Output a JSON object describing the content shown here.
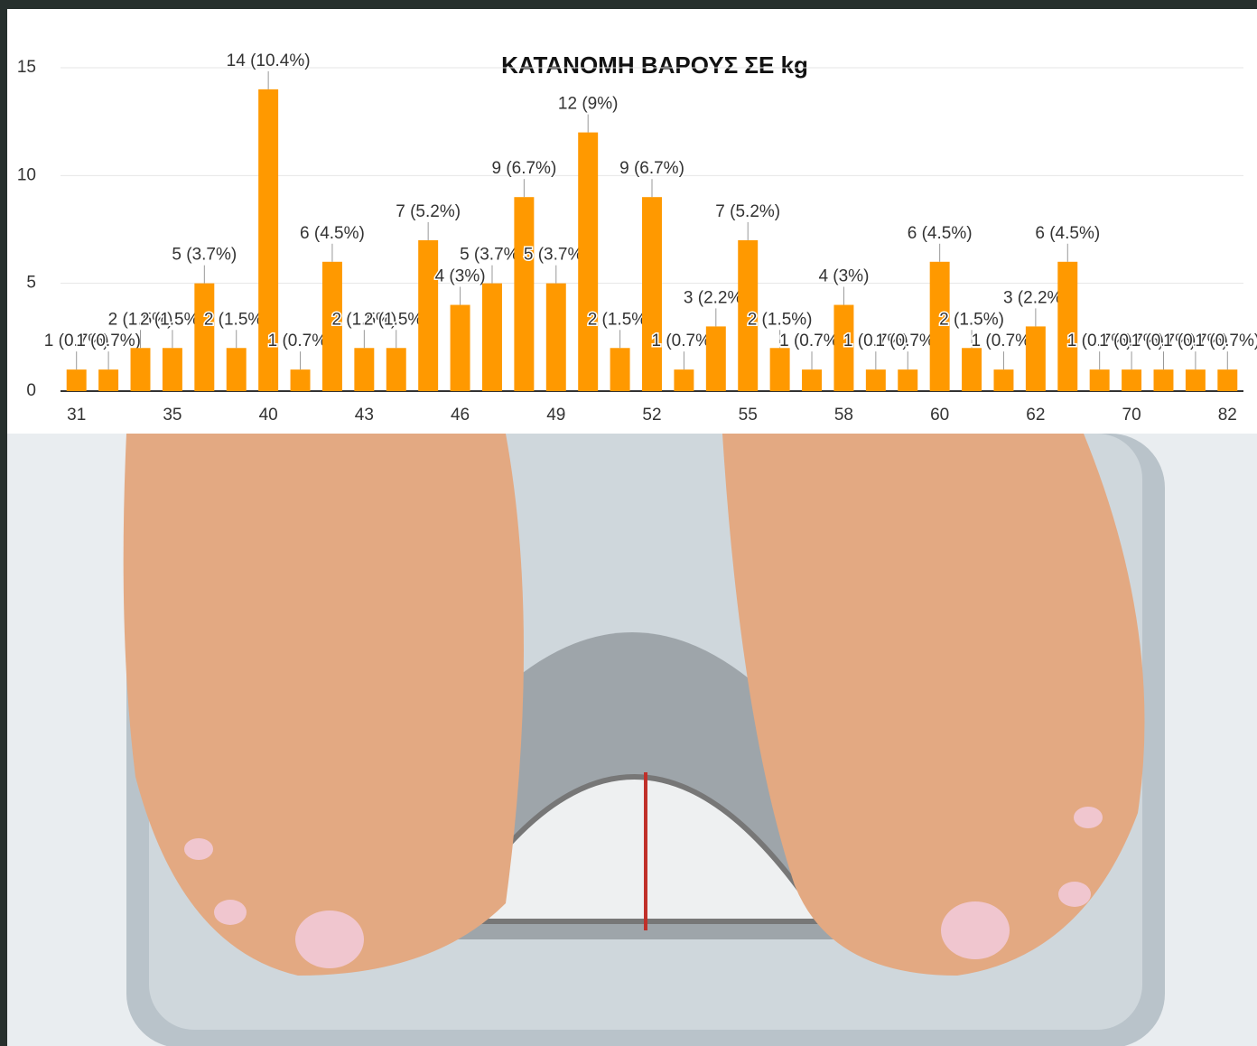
{
  "chart_data": {
    "type": "bar",
    "title": "ΚΑΤΑΝΟΜΗ ΒΑΡΟΥΣ ΣΕ kg",
    "categories": [
      "31",
      null,
      null,
      "35",
      null,
      null,
      "40",
      null,
      null,
      "43",
      null,
      null,
      "46",
      null,
      null,
      "49",
      null,
      null,
      "52",
      null,
      null,
      "55",
      null,
      null,
      "58",
      null,
      null,
      "60",
      null,
      null,
      "62",
      null,
      null,
      "70",
      null,
      null,
      "82"
    ],
    "values": [
      1,
      1,
      2,
      2,
      5,
      2,
      14,
      1,
      6,
      2,
      2,
      7,
      4,
      5,
      9,
      5,
      12,
      2,
      9,
      1,
      3,
      7,
      2,
      1,
      4,
      1,
      1,
      6,
      2,
      1,
      3,
      6,
      1,
      1,
      1,
      1,
      1
    ],
    "value_labels": [
      "1 (0.7%)",
      "1 (0.7%)",
      "2 (1.5%)",
      "2 (1.5%)",
      "5 (3.7%)",
      "2 (1.5%)",
      "14 (10.4%)",
      "1 (0.7%)",
      "6 (4.5%)",
      "2 (1.5%)",
      "2 (1.5%)",
      "7 (5.2%)",
      "4 (3%)",
      "5 (3.7%)",
      "9 (6.7%)",
      "5 (3.7%)",
      "12 (9%)",
      "2 (1.5%)",
      "9 (6.7%)",
      "1 (0.7%)",
      "3 (2.2%)",
      "7 (5.2%)",
      "2 (1.5%)",
      "1 (0.7%)",
      "4 (3%)",
      "1 (0.7%)",
      "1 (0.7%)",
      "6 (4.5%)",
      "2 (1.5%)",
      "1 (0.7%)",
      "3 (2.2%)",
      "6 (4.5%)",
      "1 (0.7%)",
      "1 (0.7%)",
      "1 (0.7%)",
      "1 (0.7%)",
      "1 (0.7%)"
    ],
    "color": "#ff9900",
    "ylim": [
      0,
      15
    ],
    "yticks": [
      0,
      5,
      10,
      15
    ],
    "grid": true
  }
}
